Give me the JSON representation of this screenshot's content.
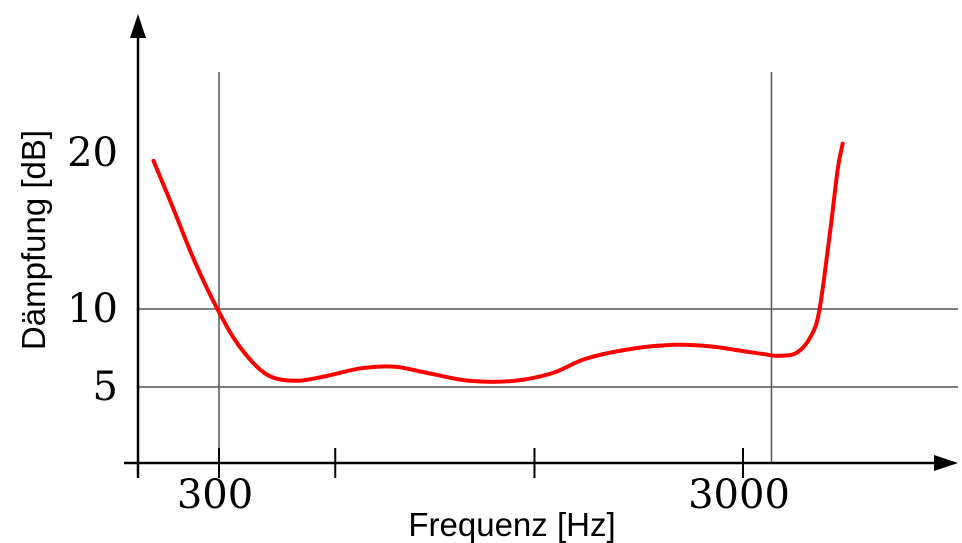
{
  "chart_data": {
    "type": "line",
    "xlabel": "Frequenz [Hz]",
    "ylabel": "Dämpfung [dB]",
    "x_scale": "log",
    "x_ticks": [
      {
        "value": 300,
        "label": "300"
      },
      {
        "value": 3000,
        "label": "3000"
      }
    ],
    "x_minor_ticks": [
      500,
      1200
    ],
    "y_ticks": [
      {
        "value": 5,
        "label": "5"
      },
      {
        "value": 10,
        "label": "10"
      },
      {
        "value": 20,
        "label": "20"
      }
    ],
    "xlim": [
      220,
      6000
    ],
    "ylim": [
      0,
      23
    ],
    "grid": {
      "x": [
        300,
        3400
      ],
      "y": [
        5,
        10
      ]
    },
    "series": [
      {
        "color": "#ff0000",
        "points": [
          [
            225,
            19.5
          ],
          [
            245,
            16.5
          ],
          [
            270,
            13
          ],
          [
            300,
            9.8
          ],
          [
            330,
            7.5
          ],
          [
            370,
            5.8
          ],
          [
            420,
            5.4
          ],
          [
            480,
            5.7
          ],
          [
            560,
            6.2
          ],
          [
            650,
            6.3
          ],
          [
            750,
            5.9
          ],
          [
            900,
            5.4
          ],
          [
            1100,
            5.4
          ],
          [
            1300,
            5.9
          ],
          [
            1500,
            6.8
          ],
          [
            1800,
            7.4
          ],
          [
            2200,
            7.7
          ],
          [
            2600,
            7.6
          ],
          [
            3000,
            7.3
          ],
          [
            3300,
            7.1
          ],
          [
            3500,
            7.0
          ],
          [
            3800,
            7.2
          ],
          [
            4050,
            8.3
          ],
          [
            4200,
            10
          ],
          [
            4400,
            15
          ],
          [
            4550,
            19
          ],
          [
            4650,
            20.6
          ]
        ]
      }
    ]
  }
}
